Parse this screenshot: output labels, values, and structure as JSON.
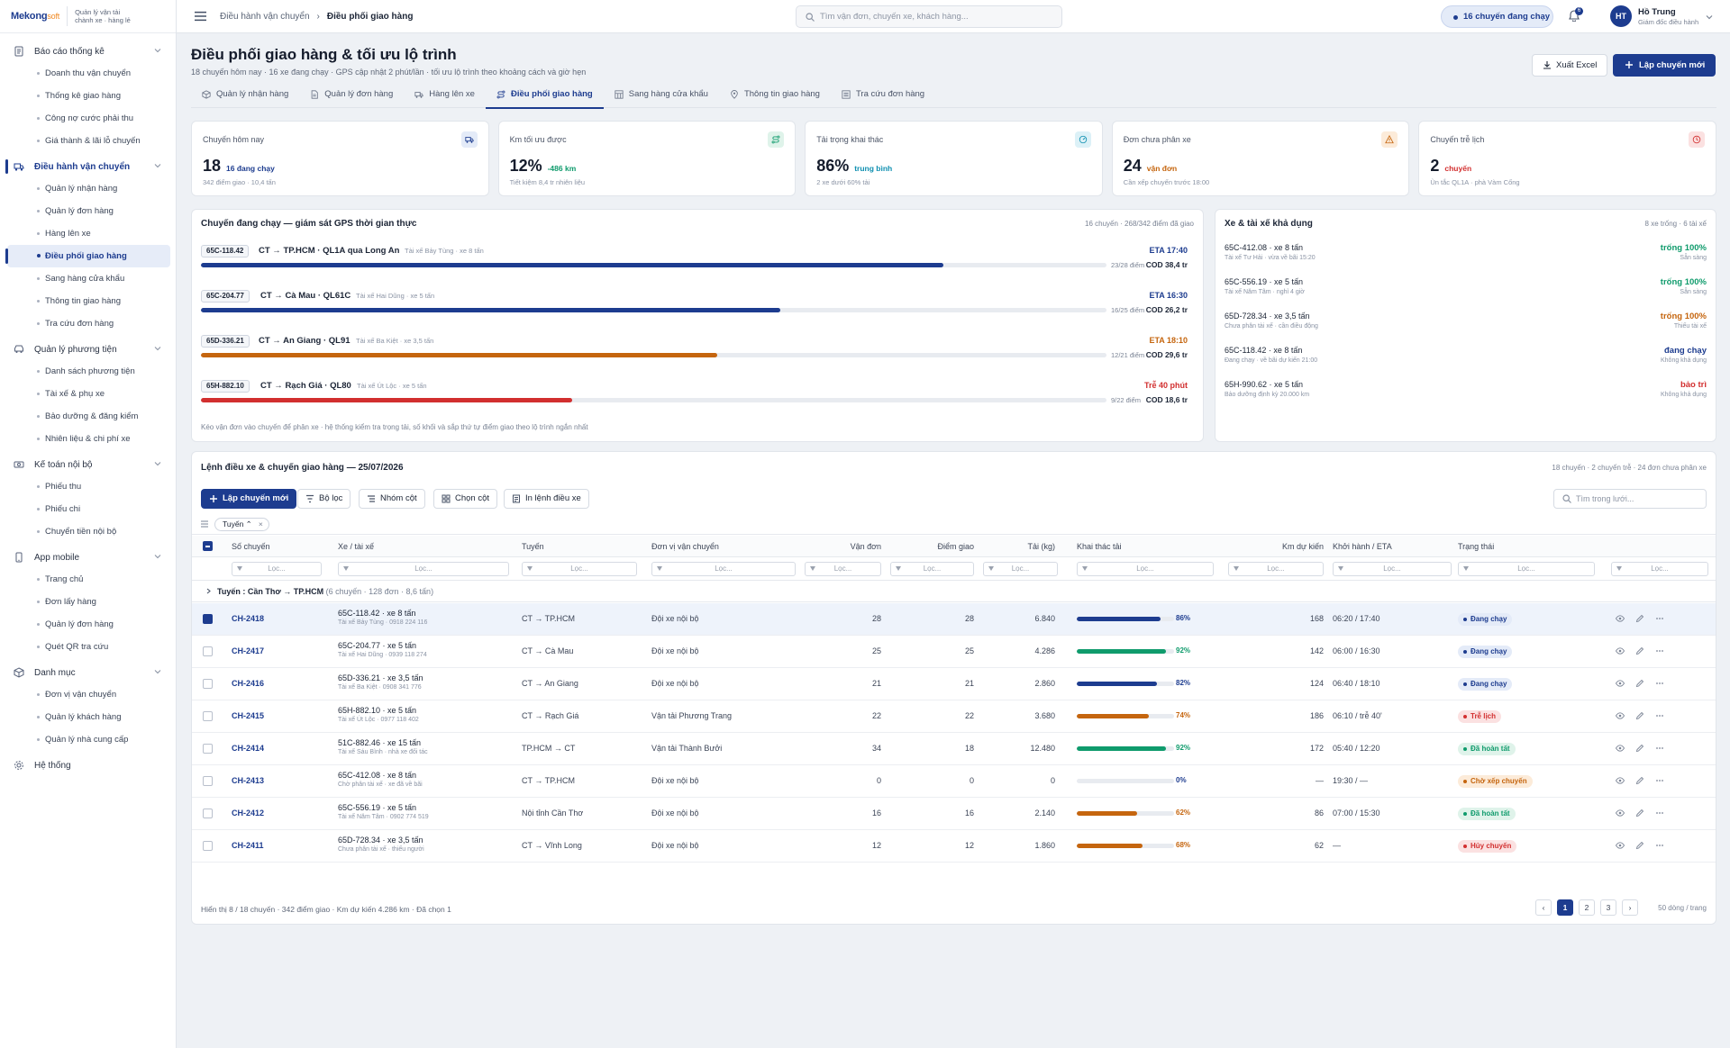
{
  "brand": {
    "logo_main": "Mekong",
    "logo_suffix": "soft",
    "app_line1": "Quản lý vận tải",
    "app_line2": "chành xe · hàng lẻ"
  },
  "sidebar": [
    {
      "label": "Báo cáo thống kê",
      "icon": "report-icon",
      "active": false,
      "items": [
        {
          "label": "Doanh thu vận chuyển"
        },
        {
          "label": "Thống kê giao hàng"
        },
        {
          "label": "Công nợ cước phải thu"
        },
        {
          "label": "Giá thành & lãi lỗ chuyến"
        }
      ]
    },
    {
      "label": "Điều hành vận chuyển",
      "icon": "truck-icon",
      "active": true,
      "items": [
        {
          "label": "Quản lý nhận hàng"
        },
        {
          "label": "Quản lý đơn hàng"
        },
        {
          "label": "Hàng lên xe"
        },
        {
          "label": "Điều phối giao hàng",
          "active": true
        },
        {
          "label": "Sang hàng cửa khẩu"
        },
        {
          "label": "Thông tin giao hàng"
        },
        {
          "label": "Tra cứu đơn hàng"
        }
      ]
    },
    {
      "label": "Quản lý phương tiện",
      "icon": "vehicle-icon",
      "active": false,
      "items": [
        {
          "label": "Danh sách phương tiện"
        },
        {
          "label": "Tài xế & phụ xe"
        },
        {
          "label": "Bảo dưỡng & đăng kiểm"
        },
        {
          "label": "Nhiên liệu & chi phí xe"
        }
      ]
    },
    {
      "label": "Kế toán nội bộ",
      "icon": "money-icon",
      "active": false,
      "items": [
        {
          "label": "Phiếu thu"
        },
        {
          "label": "Phiếu chi"
        },
        {
          "label": "Chuyển tiền nội bộ"
        }
      ]
    },
    {
      "label": "App mobile",
      "icon": "phone-icon",
      "active": false,
      "items": [
        {
          "label": "Trang chủ"
        },
        {
          "label": "Đơn lấy hàng"
        },
        {
          "label": "Quản lý đơn hàng"
        },
        {
          "label": "Quét QR tra cứu"
        }
      ]
    },
    {
      "label": "Danh mục",
      "icon": "box-icon",
      "active": false,
      "items": [
        {
          "label": "Đơn vị vận chuyển"
        },
        {
          "label": "Quản lý khách hàng"
        },
        {
          "label": "Quản lý nhà cung cấp"
        }
      ]
    },
    {
      "label": "Hệ thống",
      "icon": "gear-icon",
      "active": false,
      "items": []
    }
  ],
  "topbar": {
    "breadcrumb": [
      "Điều hành vận chuyển",
      "Điều phối giao hàng"
    ],
    "search_placeholder": "Tìm vận đơn, chuyến xe, khách hàng...",
    "running_pill": "16 chuyến đang chạy",
    "notif_count": "6",
    "user_initials": "HT",
    "user_name": "Hồ Trung",
    "user_role": "Giám đốc điều hành"
  },
  "page": {
    "title": "Điều phối giao hàng & tối ưu lộ trình",
    "subtitle": "18 chuyến hôm nay · 16 xe đang chạy · GPS cập nhật 2 phút/lần · tối ưu lộ trình theo khoảng cách và giờ hẹn",
    "export_label": "Xuất Excel",
    "new_trip_label": "Lập chuyến mới"
  },
  "tabs": [
    {
      "label": "Quản lý nhận hàng",
      "icon": "box-icon",
      "active": false
    },
    {
      "label": "Quản lý đơn hàng",
      "icon": "doc-icon",
      "active": false
    },
    {
      "label": "Hàng lên xe",
      "icon": "truck-icon",
      "active": false
    },
    {
      "label": "Điều phối giao hàng",
      "icon": "route-icon",
      "active": true
    },
    {
      "label": "Sang hàng cửa khẩu",
      "icon": "grid-icon",
      "active": false
    },
    {
      "label": "Thông tin giao hàng",
      "icon": "pin-icon",
      "active": false
    },
    {
      "label": "Tra cứu đơn hàng",
      "icon": "list-icon",
      "active": false
    }
  ],
  "kpis": [
    {
      "label": "Chuyến hôm nay",
      "value": "18",
      "delta": "16 đang chạy",
      "note": "342 điểm giao · 10,4 tấn",
      "color": "#1d3c8f",
      "bg": "#e4ebf8",
      "icon": "truck-icon"
    },
    {
      "label": "Km tối ưu được",
      "value": "12%",
      "delta": "-486 km",
      "note": "Tiết kiệm 8,4 tr nhiên liệu",
      "color": "#0f9b6c",
      "bg": "#dff3ea",
      "icon": "route-icon"
    },
    {
      "label": "Tải trọng khai thác",
      "value": "86%",
      "delta": "trung bình",
      "note": "2 xe dưới 60% tải",
      "color": "#0e8fb0",
      "bg": "#dcf1f7",
      "icon": "gauge-icon"
    },
    {
      "label": "Đơn chưa phân xe",
      "value": "24",
      "delta": "vận đơn",
      "note": "Cần xếp chuyến trước 18:00",
      "color": "#c5650e",
      "bg": "#fcebd9",
      "icon": "warning-icon"
    },
    {
      "label": "Chuyến trễ lịch",
      "value": "2",
      "delta": "chuyến",
      "note": "Ùn tắc QL1A · phà Vàm Cống",
      "color": "#d22f2f",
      "bg": "#fbe1e1",
      "icon": "clock-icon"
    }
  ],
  "tracking": {
    "title": "Chuyến đang chạy — giám sát GPS thời gian thực",
    "meta": "16 chuyến · 268/342 điểm đã giao",
    "footer": "Kéo vận đơn vào chuyến để phân xe · hệ thống kiểm tra trọng tải, số khối và sắp thứ tự điểm giao theo lộ trình ngắn nhất",
    "trips": [
      {
        "plate": "65C-118.42",
        "route": "CT → TP.HCM · QL1A qua Long An",
        "driver": "Tài xế Bảy Tùng · xe 8 tấn",
        "eta": "ETA 17:40",
        "progress": 0.82,
        "points": "23/28 điểm",
        "cod": "COD 38,4 tr",
        "color": "#1d3c8f"
      },
      {
        "plate": "65C-204.77",
        "route": "CT → Cà Mau · QL61C",
        "driver": "Tài xế Hai Dũng · xe 5 tấn",
        "eta": "ETA 16:30",
        "progress": 0.64,
        "points": "16/25 điểm",
        "cod": "COD 26,2 tr",
        "color": "#1d3c8f"
      },
      {
        "plate": "65D-336.21",
        "route": "CT → An Giang · QL91",
        "driver": "Tài xế Ba Kiệt · xe 3,5 tấn",
        "eta": "ETA 18:10",
        "progress": 0.57,
        "points": "12/21 điểm",
        "cod": "COD 29,6 tr",
        "color": "#c5650e"
      },
      {
        "plate": "65H-882.10",
        "route": "CT → Rạch Giá · QL80",
        "driver": "Tài xế Út Lộc · xe 5 tấn",
        "eta": "Trễ 40 phút",
        "progress": 0.41,
        "points": "9/22 điểm",
        "cod": "COD 18,6 tr",
        "color": "#d22f2f"
      }
    ]
  },
  "vehicles": {
    "title": "Xe & tài xế khả dụng",
    "meta": "8 xe trống · 6 tài xế",
    "items": [
      {
        "name": "65C-412.08 · xe 8 tấn",
        "note": "Tài xế Tư Hải · vừa về bãi 15:20",
        "status": "trống 100%",
        "sub": "Sẵn sàng",
        "color": "#0f9b6c"
      },
      {
        "name": "65C-556.19 · xe 5 tấn",
        "note": "Tài xế Năm Tâm · nghỉ 4 giờ",
        "status": "trống 100%",
        "sub": "Sẵn sàng",
        "color": "#0f9b6c"
      },
      {
        "name": "65D-728.34 · xe 3,5 tấn",
        "note": "Chưa phân tài xế · cần điều động",
        "status": "trống 100%",
        "sub": "Thiếu tài xế",
        "color": "#c5650e"
      },
      {
        "name": "65C-118.42 · xe 8 tấn",
        "note": "Đang chạy · về bãi dự kiến 21:00",
        "status": "đang chạy",
        "sub": "Không khả dụng",
        "color": "#1d3c8f"
      },
      {
        "name": "65H-990.62 · xe 5 tấn",
        "note": "Bảo dưỡng định kỳ 20.000 km",
        "status": "bảo trì",
        "sub": "Không khả dụng",
        "color": "#d22f2f"
      }
    ]
  },
  "dispatch": {
    "title": "Lệnh điều xe & chuyến giao hàng — 25/07/2026",
    "meta": "18 chuyến · 2 chuyến trễ · 24 đơn chưa phân xe",
    "toolbar": {
      "new": "Lập chuyến mới",
      "filter": "Bộ lọc",
      "group": "Nhóm cột",
      "columns": "Chọn cột",
      "print": "In lệnh điều xe"
    },
    "search_placeholder": "Tìm trong lưới...",
    "group_chip": "Tuyến",
    "columns": [
      "Số chuyến",
      "Xe / tài xế",
      "Tuyến",
      "Đơn vị vận chuyển",
      "Vận đơn",
      "Điểm giao",
      "Tải (kg)",
      "Khai thác tải",
      "Km dự kiến",
      "Khởi hành / ETA",
      "Trạng thái"
    ],
    "filter_placeholder": "Lọc...",
    "group_row": {
      "label": "Tuyến",
      "value": "Cần Thơ → TP.HCM",
      "count": "(6 chuyến · 128 đơn · 8,6 tấn)"
    },
    "rows": [
      {
        "id": "CH-2418",
        "vehicle": "65C-118.42 · xe 8 tấn",
        "driver": "Tài xế Bảy Tùng · 0918 224 116",
        "route": "CT → TP.HCM",
        "unit": "Đội xe nội bộ",
        "orders": "28",
        "stops": "28",
        "load": "6.840",
        "util": 86,
        "util_label": "86%",
        "util_color": "#1d3c8f",
        "km": "168",
        "eta": "06:20 / 17:40",
        "status": "Đang chạy",
        "status_color": "#1d3c8f",
        "status_bg": "#e4ebf8",
        "checked": true
      },
      {
        "id": "CH-2417",
        "vehicle": "65C-204.77 · xe 5 tấn",
        "driver": "Tài xế Hai Dũng · 0939 118 274",
        "route": "CT → Cà Mau",
        "unit": "Đội xe nội bộ",
        "orders": "25",
        "stops": "25",
        "load": "4.286",
        "util": 92,
        "util_label": "92%",
        "util_color": "#0f9b6c",
        "km": "142",
        "eta": "06:00 / 16:30",
        "status": "Đang chạy",
        "status_color": "#1d3c8f",
        "status_bg": "#e4ebf8",
        "checked": false
      },
      {
        "id": "CH-2416",
        "vehicle": "65D-336.21 · xe 3,5 tấn",
        "driver": "Tài xế Ba Kiệt · 0908 341 776",
        "route": "CT → An Giang",
        "unit": "Đội xe nội bộ",
        "orders": "21",
        "stops": "21",
        "load": "2.860",
        "util": 82,
        "util_label": "82%",
        "util_color": "#1d3c8f",
        "km": "124",
        "eta": "06:40 / 18:10",
        "status": "Đang chạy",
        "status_color": "#1d3c8f",
        "status_bg": "#e4ebf8",
        "checked": false
      },
      {
        "id": "CH-2415",
        "vehicle": "65H-882.10 · xe 5 tấn",
        "driver": "Tài xế Út Lộc · 0977 118 402",
        "route": "CT → Rạch Giá",
        "unit": "Vận tải Phương Trang",
        "orders": "22",
        "stops": "22",
        "load": "3.680",
        "util": 74,
        "util_label": "74%",
        "util_color": "#c5650e",
        "km": "186",
        "eta": "06:10 / trễ 40'",
        "status": "Trễ lịch",
        "status_color": "#d22f2f",
        "status_bg": "#fbe1e1",
        "checked": false
      },
      {
        "id": "CH-2414",
        "vehicle": "51C-882.46 · xe 15 tấn",
        "driver": "Tài xế Sáu Bình · nhà xe đối tác",
        "route": "TP.HCM → CT",
        "unit": "Vận tải Thành Bưởi",
        "orders": "34",
        "stops": "18",
        "load": "12.480",
        "util": 92,
        "util_label": "92%",
        "util_color": "#0f9b6c",
        "km": "172",
        "eta": "05:40 / 12:20",
        "status": "Đã hoàn tất",
        "status_color": "#0f9b6c",
        "status_bg": "#dff3ea",
        "checked": false
      },
      {
        "id": "CH-2413",
        "vehicle": "65C-412.08 · xe 8 tấn",
        "driver": "Chờ phân tài xế · xe đã về bãi",
        "route": "CT → TP.HCM",
        "unit": "Đội xe nội bộ",
        "orders": "0",
        "stops": "0",
        "load": "0",
        "util": 0,
        "util_label": "0%",
        "util_color": "#1d3c8f",
        "km": "—",
        "eta": "19:30 / —",
        "status": "Chờ xếp chuyến",
        "status_color": "#c5650e",
        "status_bg": "#fcebd9",
        "checked": false
      },
      {
        "id": "CH-2412",
        "vehicle": "65C-556.19 · xe 5 tấn",
        "driver": "Tài xế Năm Tâm · 0902 774 519",
        "route": "Nội tỉnh Cần Thơ",
        "unit": "Đội xe nội bộ",
        "orders": "16",
        "stops": "16",
        "load": "2.140",
        "util": 62,
        "util_label": "62%",
        "util_color": "#c5650e",
        "km": "86",
        "eta": "07:00 / 15:30",
        "status": "Đã hoàn tất",
        "status_color": "#0f9b6c",
        "status_bg": "#dff3ea",
        "checked": false
      },
      {
        "id": "CH-2411",
        "vehicle": "65D-728.34 · xe 3,5 tấn",
        "driver": "Chưa phân tài xế · thiếu người",
        "route": "CT → Vĩnh Long",
        "unit": "Đội xe nội bộ",
        "orders": "12",
        "stops": "12",
        "load": "1.860",
        "util": 68,
        "util_label": "68%",
        "util_color": "#c5650e",
        "km": "62",
        "eta": "—",
        "status": "Hủy chuyến",
        "status_color": "#d22f2f",
        "status_bg": "#fbe1e1",
        "checked": false
      }
    ],
    "footer": "Hiển thị 8 / 18 chuyến · 342 điểm giao · Km dự kiến 4.286 km · Đã chọn 1",
    "pages": [
      "1",
      "2",
      "3"
    ],
    "page_size": "50 dòng / trang"
  }
}
